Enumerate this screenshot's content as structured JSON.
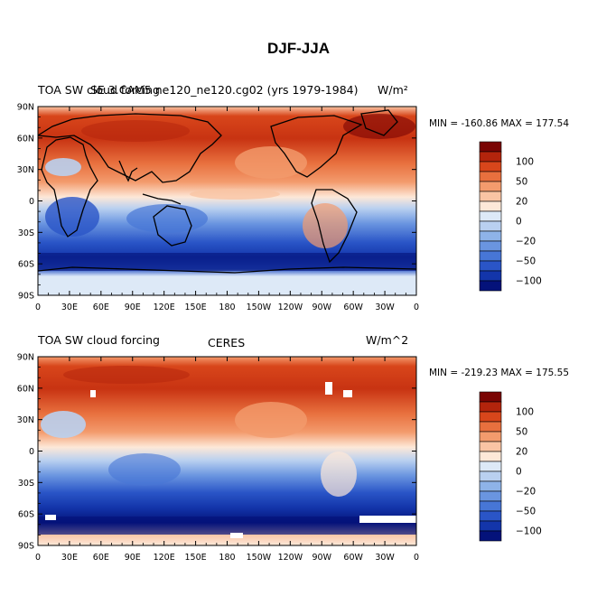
{
  "page_title": "DJF-JJA",
  "panels": [
    {
      "left_title": "TOA SW cloud forcing",
      "center_title": "SE 3.CAM5 ne120_ne120.cg02 (yrs 1979-1984)",
      "units": "W/m²",
      "min_max": "MIN = -160.86  MAX = 177.54"
    },
    {
      "left_title": "TOA SW cloud forcing",
      "center_title": "CERES",
      "units": "W/m^2",
      "min_max": "MIN = -219.23  MAX = 175.55"
    }
  ],
  "lat_labels": [
    "90N",
    "60N",
    "30N",
    "0",
    "30S",
    "60S",
    "90S"
  ],
  "lon_labels": [
    "0",
    "30E",
    "60E",
    "90E",
    "120E",
    "150E",
    "180",
    "150W",
    "120W",
    "90W",
    "60W",
    "30W",
    "0"
  ],
  "colorbar_labels": [
    "100",
    "50",
    "20",
    "0",
    "-20",
    "-50",
    "-100"
  ],
  "colorbar_colors": [
    "#7a0403",
    "#b3240c",
    "#d8461b",
    "#e8703e",
    "#f39b6d",
    "#f9c4a4",
    "#fde8d8",
    "#dde9f7",
    "#b9d0f0",
    "#8eb3e8",
    "#6a95e0",
    "#4776d6",
    "#2a55c7",
    "#1335aa",
    "#04127a"
  ],
  "colors": {
    "coast": "#000000",
    "strong_positive": "#c0280c",
    "strong_negative": "#1335aa"
  }
}
